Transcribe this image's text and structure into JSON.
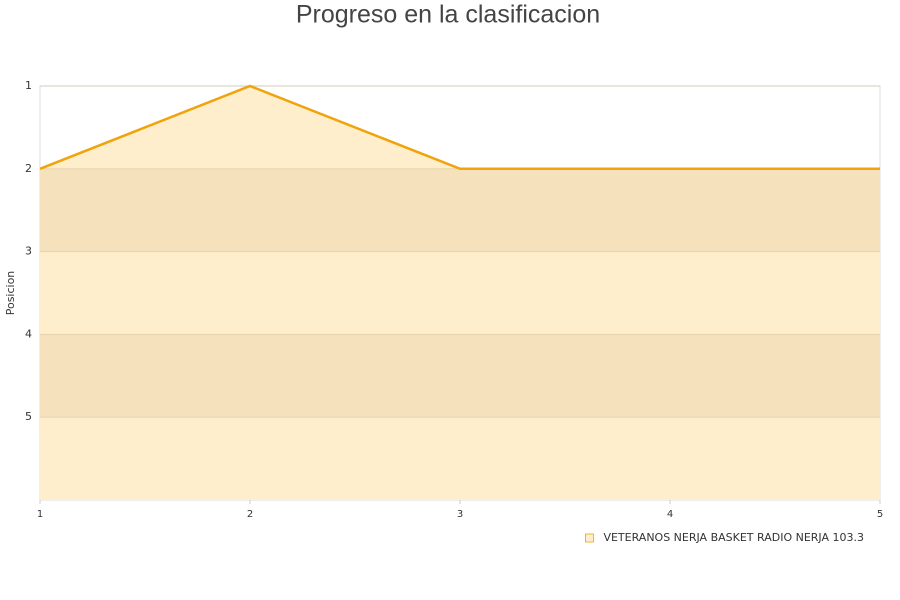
{
  "chart_data": {
    "type": "area",
    "title": "Progreso en la clasificacion",
    "ylabel": "Posicion",
    "x": [
      1,
      2,
      3,
      4,
      5
    ],
    "xlim": [
      1,
      5
    ],
    "xticks": [
      1,
      2,
      3,
      4,
      5
    ],
    "ylim": [
      1,
      6
    ],
    "yticks": [
      1,
      2,
      3,
      4,
      5
    ],
    "y_reversed": true,
    "grid": true,
    "legend": "bottom-right",
    "series": [
      {
        "name": "VETERANOS NERJA BASKET RADIO NERJA 103.3",
        "color": "#f0a30a",
        "fill": "#ffeecc",
        "values": [
          2,
          1,
          2,
          2,
          2
        ]
      }
    ]
  }
}
